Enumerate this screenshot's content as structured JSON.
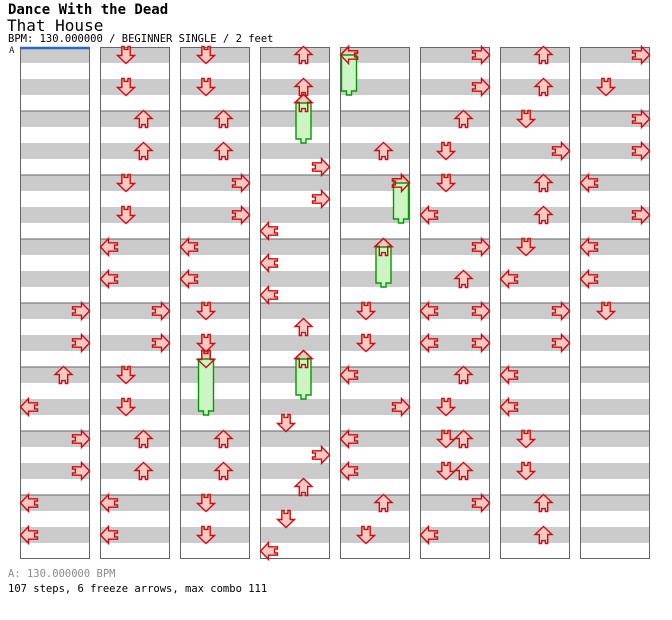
{
  "header": {
    "artist": "Dance With the Dead",
    "title": "That House",
    "info": "BPM: 130.000000 / BEGINNER SINGLE / 2 feet"
  },
  "footer": {
    "section_bpm": "A: 130.000000 BPM",
    "summary": "107 steps, 6 freeze arrows, max combo 111"
  },
  "colors": {
    "column_bg": "#ffffff",
    "stripe": "#cbcbcb",
    "border": "#666666",
    "section_line": "#2b65c8",
    "arrow_fill": "#f9c8c4",
    "arrow_stroke": "#cc0e0e",
    "freeze_fill": "#ccf4c4",
    "freeze_stroke": "#009b00"
  },
  "chart_data": {
    "type": "ddr-step-chart",
    "section_label": "A",
    "bpm": 130.0,
    "difficulty": "BEGINNER SINGLE",
    "feet": 2,
    "steps": 107,
    "freeze_arrows": 6,
    "max_combo": 111,
    "columns": 8,
    "rows_per_column": 32,
    "measure_line_every_rows": 4,
    "lanes": [
      "L",
      "D",
      "U",
      "R"
    ],
    "notes": [
      [
        0,
        16,
        "R"
      ],
      [
        0,
        18,
        "R"
      ],
      [
        0,
        20,
        "U"
      ],
      [
        0,
        22,
        "L"
      ],
      [
        0,
        24,
        "R"
      ],
      [
        0,
        26,
        "R"
      ],
      [
        0,
        28,
        "L"
      ],
      [
        0,
        30,
        "L"
      ],
      [
        1,
        0,
        "D"
      ],
      [
        1,
        2,
        "D"
      ],
      [
        1,
        4,
        "U"
      ],
      [
        1,
        6,
        "U"
      ],
      [
        1,
        8,
        "D"
      ],
      [
        1,
        10,
        "D"
      ],
      [
        1,
        12,
        "L"
      ],
      [
        1,
        14,
        "L"
      ],
      [
        1,
        16,
        "R"
      ],
      [
        1,
        18,
        "R"
      ],
      [
        1,
        20,
        "D"
      ],
      [
        1,
        22,
        "D"
      ],
      [
        1,
        24,
        "U"
      ],
      [
        1,
        26,
        "U"
      ],
      [
        1,
        28,
        "L"
      ],
      [
        1,
        30,
        "L"
      ],
      [
        2,
        0,
        "D"
      ],
      [
        2,
        2,
        "D"
      ],
      [
        2,
        4,
        "U"
      ],
      [
        2,
        6,
        "U"
      ],
      [
        2,
        8,
        "R"
      ],
      [
        2,
        10,
        "R"
      ],
      [
        2,
        12,
        "L"
      ],
      [
        2,
        14,
        "L"
      ],
      [
        2,
        16,
        "D"
      ],
      [
        2,
        18,
        "D"
      ],
      [
        2,
        24,
        "U"
      ],
      [
        2,
        26,
        "U"
      ],
      [
        2,
        28,
        "D"
      ],
      [
        2,
        30,
        "D"
      ],
      [
        3,
        0,
        "U"
      ],
      [
        3,
        2,
        "U"
      ],
      [
        3,
        7,
        "R"
      ],
      [
        3,
        9,
        "R"
      ],
      [
        3,
        11,
        "L"
      ],
      [
        3,
        13,
        "L"
      ],
      [
        3,
        15,
        "L"
      ],
      [
        3,
        17,
        "U"
      ],
      [
        3,
        23,
        "D"
      ],
      [
        3,
        25,
        "R"
      ],
      [
        3,
        27,
        "U"
      ],
      [
        3,
        29,
        "D"
      ],
      [
        3,
        31,
        "L"
      ],
      [
        4,
        6,
        "U"
      ],
      [
        4,
        16,
        "D"
      ],
      [
        4,
        18,
        "D"
      ],
      [
        4,
        20,
        "L"
      ],
      [
        4,
        22,
        "R"
      ],
      [
        4,
        24,
        "L"
      ],
      [
        4,
        26,
        "L"
      ],
      [
        4,
        28,
        "U"
      ],
      [
        4,
        30,
        "D"
      ],
      [
        5,
        0,
        "R"
      ],
      [
        5,
        2,
        "R"
      ],
      [
        5,
        4,
        "U"
      ],
      [
        5,
        6,
        "D"
      ],
      [
        5,
        8,
        "D"
      ],
      [
        5,
        10,
        "L"
      ],
      [
        5,
        12,
        "R"
      ],
      [
        5,
        14,
        "U"
      ],
      [
        5,
        16,
        "L"
      ],
      [
        5,
        16,
        "R"
      ],
      [
        5,
        18,
        "L"
      ],
      [
        5,
        18,
        "R"
      ],
      [
        5,
        20,
        "U"
      ],
      [
        5,
        22,
        "D"
      ],
      [
        5,
        24,
        "D"
      ],
      [
        5,
        24,
        "U"
      ],
      [
        5,
        26,
        "D"
      ],
      [
        5,
        26,
        "U"
      ],
      [
        5,
        28,
        "R"
      ],
      [
        5,
        30,
        "L"
      ],
      [
        6,
        0,
        "U"
      ],
      [
        6,
        2,
        "U"
      ],
      [
        6,
        4,
        "D"
      ],
      [
        6,
        6,
        "R"
      ],
      [
        6,
        8,
        "U"
      ],
      [
        6,
        10,
        "U"
      ],
      [
        6,
        12,
        "D"
      ],
      [
        6,
        14,
        "L"
      ],
      [
        6,
        16,
        "R"
      ],
      [
        6,
        18,
        "R"
      ],
      [
        6,
        20,
        "L"
      ],
      [
        6,
        22,
        "L"
      ],
      [
        6,
        24,
        "D"
      ],
      [
        6,
        26,
        "D"
      ],
      [
        6,
        28,
        "U"
      ],
      [
        6,
        30,
        "U"
      ],
      [
        7,
        0,
        "R"
      ],
      [
        7,
        2,
        "D"
      ],
      [
        7,
        4,
        "R"
      ],
      [
        7,
        6,
        "R"
      ],
      [
        7,
        8,
        "L"
      ],
      [
        7,
        10,
        "R"
      ],
      [
        7,
        12,
        "L"
      ],
      [
        7,
        14,
        "L"
      ],
      [
        7,
        16,
        "D"
      ]
    ],
    "freezes": [
      [
        4,
        0,
        "L",
        3
      ],
      [
        3,
        3,
        "U",
        6
      ],
      [
        4,
        8,
        "R",
        11
      ],
      [
        4,
        12,
        "U",
        15
      ],
      [
        2,
        19,
        "D",
        23
      ],
      [
        3,
        19,
        "U",
        22
      ]
    ]
  }
}
